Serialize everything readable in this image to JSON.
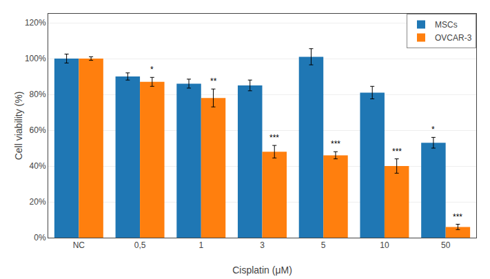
{
  "chart_data": {
    "type": "bar",
    "categories": [
      "NC",
      "0,5",
      "1",
      "3",
      "5",
      "10",
      "50"
    ],
    "series": [
      {
        "name": "MSCs",
        "values": [
          100,
          90,
          86,
          85,
          101,
          81,
          53
        ],
        "errors": [
          2.5,
          2.0,
          2.5,
          3.0,
          4.5,
          3.5,
          3.0
        ],
        "annotations": [
          null,
          null,
          null,
          null,
          null,
          null,
          "*"
        ]
      },
      {
        "name": "OVCAR-3",
        "values": [
          100,
          87,
          78,
          48,
          46,
          40,
          6
        ],
        "errors": [
          1.0,
          2.5,
          5.0,
          3.5,
          2.0,
          4.0,
          1.5
        ],
        "annotations": [
          null,
          "*",
          "**",
          "***",
          "***",
          "***",
          "***"
        ]
      }
    ],
    "xlabel": "Cisplatin (μM)",
    "ylabel": "Cell viability (%)",
    "ylim": [
      0,
      125
    ],
    "yticks": [
      {
        "value": 0,
        "label": "0%"
      },
      {
        "value": 20,
        "label": "20%"
      },
      {
        "value": 40,
        "label": "40%"
      },
      {
        "value": 60,
        "label": "60%"
      },
      {
        "value": 80,
        "label": "80%"
      },
      {
        "value": 100,
        "label": "100%"
      },
      {
        "value": 120,
        "label": "120%"
      }
    ],
    "grid": true,
    "legend": "upper right"
  }
}
